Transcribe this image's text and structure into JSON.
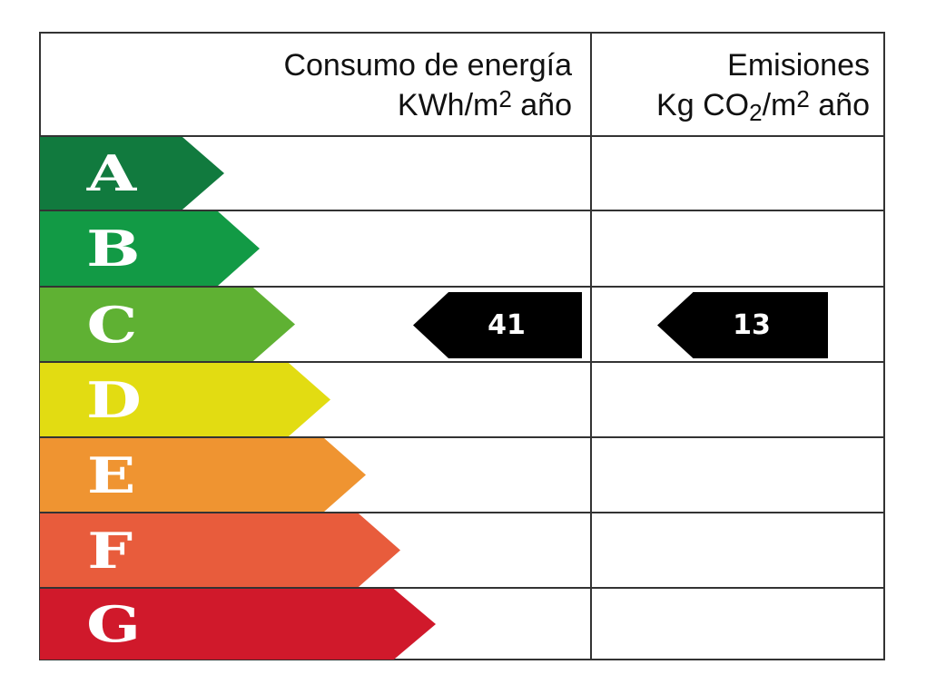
{
  "header": {
    "energy_title": "Consumo de energía",
    "energy_unit": {
      "pre": "KWh/m",
      "sup": "2",
      "post": " año"
    },
    "emissions_title": "Emisiones",
    "emissions_unit": {
      "pre": "Kg CO",
      "sub": "2",
      "mid": "/m",
      "sup": "2",
      "post": " año"
    }
  },
  "ratings": [
    {
      "letter": "A",
      "color": "#117a3e"
    },
    {
      "letter": "B",
      "color": "#129a45"
    },
    {
      "letter": "C",
      "color": "#5fb133"
    },
    {
      "letter": "D",
      "color": "#e2dc12"
    },
    {
      "letter": "E",
      "color": "#ef9431"
    },
    {
      "letter": "F",
      "color": "#e85c3c"
    },
    {
      "letter": "G",
      "color": "#d0192b"
    }
  ],
  "energy_rating": {
    "letter": "C",
    "value": "41"
  },
  "emissions_rating": {
    "letter": "C",
    "value": "13"
  }
}
